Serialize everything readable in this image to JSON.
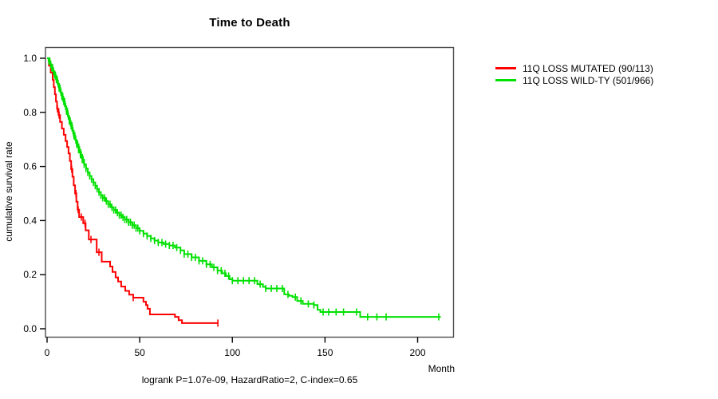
{
  "chart_data": {
    "type": "line",
    "subtype": "kaplan-meier-step-survival",
    "title": "Time to Death",
    "xlabel": "Month",
    "ylabel": "cumulative survival rate",
    "annotation": "logrank P=1.07e-09, HazardRatio=2, C-index=0.65",
    "xlim": [
      0,
      220
    ],
    "ylim": [
      0,
      1.0
    ],
    "xticks": [
      0,
      50,
      100,
      150,
      200
    ],
    "xtick_labels": [
      "0",
      "50",
      "100",
      "150",
      "200"
    ],
    "yticks": [
      0.0,
      0.2,
      0.4,
      0.6,
      0.8,
      1.0
    ],
    "ytick_labels": [
      "0.0",
      "0.2",
      "0.4",
      "0.6",
      "0.8",
      "1.0"
    ],
    "grid": false,
    "legend_position": "outside-right",
    "series": [
      {
        "id": "mutated",
        "name": "11Q LOSS MUTATED (90/113)",
        "color": "#ff0000",
        "step": true,
        "points": [
          [
            0,
            1.0
          ],
          [
            1,
            0.973
          ],
          [
            2,
            0.947
          ],
          [
            3,
            0.92
          ],
          [
            3.6,
            0.893
          ],
          [
            4.2,
            0.867
          ],
          [
            4.8,
            0.84
          ],
          [
            5.4,
            0.813
          ],
          [
            6.2,
            0.79
          ],
          [
            7,
            0.765
          ],
          [
            8,
            0.74
          ],
          [
            9,
            0.717
          ],
          [
            10,
            0.694
          ],
          [
            10.8,
            0.672
          ],
          [
            11.6,
            0.648
          ],
          [
            12.3,
            0.62
          ],
          [
            13,
            0.59
          ],
          [
            13.7,
            0.562
          ],
          [
            14.4,
            0.53
          ],
          [
            15.1,
            0.5
          ],
          [
            15.8,
            0.47
          ],
          [
            16.5,
            0.44
          ],
          [
            17.3,
            0.413
          ],
          [
            19.5,
            0.39
          ],
          [
            20.8,
            0.364
          ],
          [
            22.5,
            0.33
          ],
          [
            26.8,
            0.283
          ],
          [
            29.5,
            0.248
          ],
          [
            34,
            0.23
          ],
          [
            35.3,
            0.21
          ],
          [
            37,
            0.19
          ],
          [
            38.3,
            0.175
          ],
          [
            40,
            0.156
          ],
          [
            42.2,
            0.14
          ],
          [
            44.3,
            0.126
          ],
          [
            46.5,
            0.115
          ],
          [
            52,
            0.1
          ],
          [
            53.4,
            0.088
          ],
          [
            54.2,
            0.074
          ],
          [
            55.5,
            0.053
          ],
          [
            69,
            0.044
          ],
          [
            71,
            0.032
          ],
          [
            72.8,
            0.021
          ],
          [
            92.2,
            0.021
          ]
        ],
        "censor_times": [
          5.6,
          6.5,
          13.3,
          15.6,
          16.8,
          18.5,
          20.5,
          23.7,
          28,
          46.5,
          92.2
        ]
      },
      {
        "id": "wildtype",
        "name": "11Q LOSS WILD-TY (501/966)",
        "color": "#00e000",
        "step": true,
        "points": [
          [
            0,
            1.0
          ],
          [
            0.8,
            0.99
          ],
          [
            1.6,
            0.978
          ],
          [
            2.4,
            0.965
          ],
          [
            3.2,
            0.952
          ],
          [
            4,
            0.938
          ],
          [
            4.8,
            0.922
          ],
          [
            5.6,
            0.906
          ],
          [
            6.4,
            0.89
          ],
          [
            7.2,
            0.874
          ],
          [
            8,
            0.858
          ],
          [
            8.8,
            0.84
          ],
          [
            9.6,
            0.822
          ],
          [
            10.4,
            0.804
          ],
          [
            11.2,
            0.786
          ],
          [
            12,
            0.768
          ],
          [
            12.8,
            0.75
          ],
          [
            13.6,
            0.732
          ],
          [
            14.4,
            0.714
          ],
          [
            15.2,
            0.698
          ],
          [
            16,
            0.682
          ],
          [
            17,
            0.662
          ],
          [
            18,
            0.643
          ],
          [
            19,
            0.625
          ],
          [
            20,
            0.608
          ],
          [
            21,
            0.592
          ],
          [
            22,
            0.578
          ],
          [
            23,
            0.565
          ],
          [
            24,
            0.553
          ],
          [
            25,
            0.541
          ],
          [
            26,
            0.529
          ],
          [
            27,
            0.517
          ],
          [
            28,
            0.505
          ],
          [
            29,
            0.494
          ],
          [
            30,
            0.484
          ],
          [
            31.5,
            0.472
          ],
          [
            33,
            0.46
          ],
          [
            34.5,
            0.449
          ],
          [
            36,
            0.439
          ],
          [
            37.5,
            0.429
          ],
          [
            39,
            0.42
          ],
          [
            40.5,
            0.412
          ],
          [
            42,
            0.404
          ],
          [
            44,
            0.394
          ],
          [
            46,
            0.383
          ],
          [
            48,
            0.372
          ],
          [
            50,
            0.362
          ],
          [
            52,
            0.352
          ],
          [
            54,
            0.343
          ],
          [
            56,
            0.334
          ],
          [
            58,
            0.326
          ],
          [
            60,
            0.319
          ],
          [
            63,
            0.313
          ],
          [
            66,
            0.308
          ],
          [
            69,
            0.3
          ],
          [
            72,
            0.29
          ],
          [
            74,
            0.276
          ],
          [
            78,
            0.264
          ],
          [
            82,
            0.251
          ],
          [
            86,
            0.238
          ],
          [
            89,
            0.227
          ],
          [
            92,
            0.215
          ],
          [
            94.5,
            0.205
          ],
          [
            96.5,
            0.195
          ],
          [
            98.5,
            0.183
          ],
          [
            100,
            0.178
          ],
          [
            113.5,
            0.165
          ],
          [
            116.5,
            0.155
          ],
          [
            118,
            0.149
          ],
          [
            128,
            0.127
          ],
          [
            130.5,
            0.122
          ],
          [
            132.5,
            0.117
          ],
          [
            135,
            0.103
          ],
          [
            138,
            0.092
          ],
          [
            144,
            0.088
          ],
          [
            146,
            0.07
          ],
          [
            147.5,
            0.062
          ],
          [
            169,
            0.044
          ],
          [
            212.5,
            0.044
          ]
        ],
        "censor_times": [
          1,
          1.5,
          2,
          2.5,
          3,
          3.5,
          4,
          4.5,
          5,
          5.5,
          6,
          6.5,
          7,
          7.5,
          8,
          8.5,
          9,
          9.5,
          10,
          10.5,
          11,
          11.5,
          12,
          12.5,
          13,
          13.5,
          14,
          14.5,
          15,
          15.5,
          16,
          16.5,
          17,
          17.5,
          18,
          18.5,
          19,
          19.5,
          20,
          21,
          22,
          23,
          24,
          25,
          26,
          27,
          28,
          29,
          30,
          31,
          32,
          33,
          34,
          35,
          36,
          37,
          38,
          39,
          40,
          41,
          42,
          43,
          44,
          45,
          46,
          47,
          48,
          49,
          50,
          52,
          54,
          56,
          58,
          60,
          62,
          64,
          66,
          68,
          70,
          72,
          74,
          76,
          78,
          80,
          82,
          84,
          86,
          88,
          90,
          92,
          94,
          96,
          98,
          100,
          103,
          106,
          109,
          112,
          115,
          118,
          121,
          124,
          127,
          130,
          134,
          137,
          141,
          144,
          149,
          152,
          156,
          160,
          167,
          173,
          178,
          183,
          211.4
        ]
      }
    ]
  }
}
